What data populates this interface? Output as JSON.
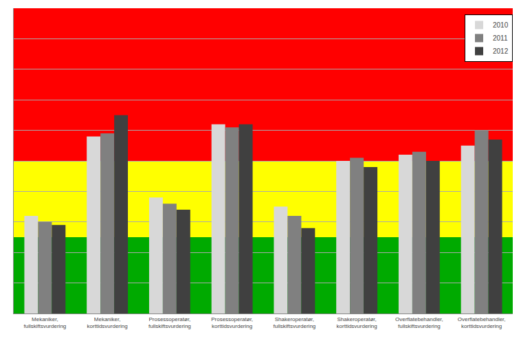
{
  "chart_data": {
    "type": "bar",
    "categories": [
      "Mekaniker,\nfullskiftsvurdering",
      "Mekaniker,\nkorttidsvurdering",
      "Prosessoperatør,\nfullskiftsvurdering",
      "Prosessoperatør,\nkorttidsvurdering",
      "Shakeroperatør,\nfullskiftsvurdering",
      "Shakeroperatør,\nkorttidsvurdering",
      "Overflatebehandler,\nfullskiftsvurdering",
      "Overflatebehandler,\nkorttidsvurdering"
    ],
    "series": [
      {
        "name": "2010",
        "color": "#d8d8d8",
        "values": [
          3.2,
          5.8,
          3.8,
          6.2,
          3.5,
          5.0,
          5.2,
          5.5
        ]
      },
      {
        "name": "2011",
        "color": "#808080",
        "values": [
          3.0,
          5.9,
          3.6,
          6.1,
          3.2,
          5.1,
          5.3,
          6.0
        ]
      },
      {
        "name": "2012",
        "color": "#404040",
        "values": [
          2.9,
          6.5,
          3.4,
          6.2,
          2.8,
          4.8,
          5.0,
          5.7
        ]
      }
    ],
    "background_zones": [
      {
        "ymin": 0.0,
        "ymax": 2.5,
        "color": "#00aa00"
      },
      {
        "ymin": 2.5,
        "ymax": 5.0,
        "color": "#ffff00"
      },
      {
        "ymin": 5.0,
        "ymax": 10.0,
        "color": "#ff0000"
      }
    ],
    "ylim": [
      0,
      10.0
    ],
    "yticks": [
      0,
      1,
      2,
      3,
      4,
      5,
      6,
      7,
      8,
      9,
      10
    ],
    "grid": true,
    "legend": "upper right",
    "tick_labels": "x"
  }
}
